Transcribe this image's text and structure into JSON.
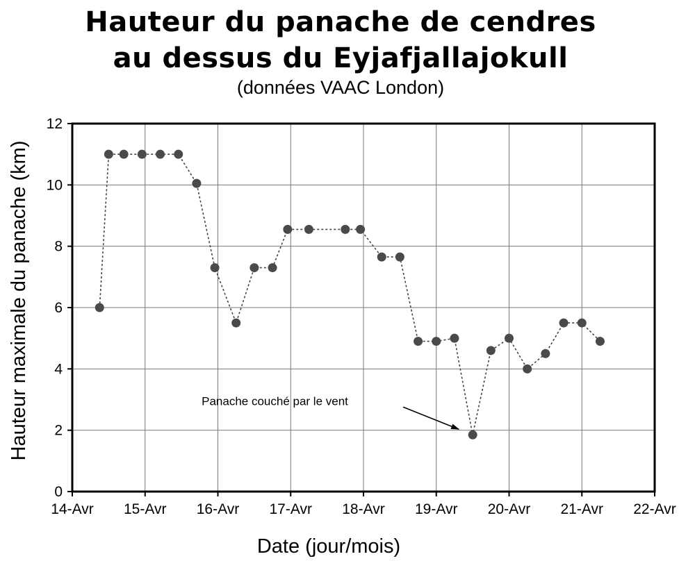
{
  "title_line1": "Hauteur du panache de cendres",
  "title_line2": "au dessus du Eyjafjallajokull",
  "subtitle": "(données VAAC London)",
  "chart_data": {
    "type": "line",
    "xlabel": "Date (jour/mois)",
    "ylabel": "Hauteur maximale du panache (km)",
    "xlim": [
      0,
      8
    ],
    "ylim": [
      0,
      12
    ],
    "x_ticks": [
      "14-Avr",
      "15-Avr",
      "16-Avr",
      "17-Avr",
      "18-Avr",
      "19-Avr",
      "20-Avr",
      "21-Avr",
      "22-Avr"
    ],
    "y_ticks": [
      0,
      2,
      4,
      6,
      8,
      10,
      12
    ],
    "grid": true,
    "line_style": "dotted",
    "marker_color": "#4a4a4a",
    "series": [
      {
        "x": [
          0.375,
          0.5,
          0.708,
          0.958,
          1.208,
          1.458,
          1.708,
          1.958,
          2.25,
          2.5,
          2.75,
          2.958,
          3.25,
          3.75,
          3.958,
          4.25,
          4.5,
          4.75,
          5.0,
          5.25,
          5.5,
          5.75,
          6.0,
          6.25,
          6.5,
          6.75,
          7.0,
          7.25
        ],
        "y": [
          6.0,
          11.0,
          11.0,
          11.0,
          11.0,
          11.0,
          10.05,
          7.3,
          5.5,
          7.3,
          7.3,
          8.55,
          8.55,
          8.55,
          8.55,
          7.65,
          7.65,
          4.9,
          4.9,
          5.0,
          1.85,
          4.6,
          5.0,
          4.0,
          4.5,
          5.5,
          5.5,
          4.9
        ]
      }
    ],
    "annotation": {
      "text": "Panache couché par le vent",
      "x": 5.5,
      "y": 1.85
    }
  }
}
